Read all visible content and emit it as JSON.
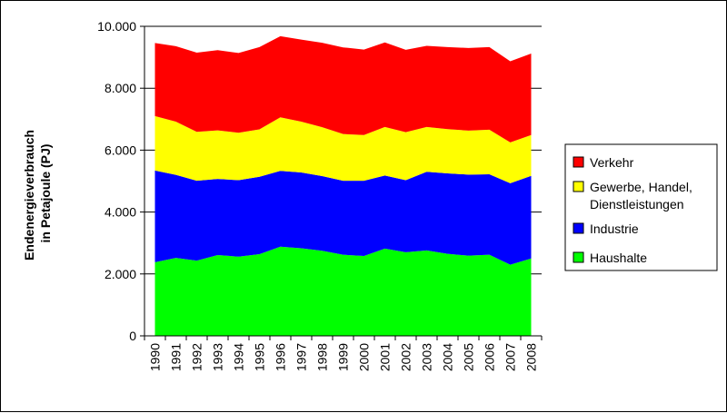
{
  "chart_data": {
    "type": "area",
    "stacked": true,
    "title": "",
    "xlabel": "",
    "ylabel": [
      "Endenergieverbrauch",
      "in Petajoule (PJ)"
    ],
    "ylim": [
      0,
      10000
    ],
    "yticks": [
      0,
      2000,
      4000,
      6000,
      8000,
      10000
    ],
    "ytick_labels": [
      "0",
      "2.000",
      "4.000",
      "6.000",
      "8.000",
      "10.000"
    ],
    "grid": "horizontal",
    "legend_position": "right",
    "categories": [
      "1990",
      "1991",
      "1992",
      "1993",
      "1994",
      "1995",
      "1996",
      "1997",
      "1998",
      "1999",
      "2000",
      "2001",
      "2002",
      "2003",
      "2004",
      "2005",
      "2006",
      "2007",
      "2008"
    ],
    "series": [
      {
        "name": "Haushalte",
        "color": "#00ff00",
        "values": [
          2380,
          2520,
          2430,
          2610,
          2560,
          2640,
          2880,
          2830,
          2750,
          2620,
          2580,
          2820,
          2700,
          2760,
          2650,
          2590,
          2620,
          2300,
          2500
        ]
      },
      {
        "name": "Industrie",
        "color": "#0000ff",
        "values": [
          2960,
          2680,
          2580,
          2460,
          2470,
          2500,
          2450,
          2450,
          2410,
          2390,
          2430,
          2360,
          2330,
          2540,
          2600,
          2620,
          2600,
          2630,
          2670
        ]
      },
      {
        "name": "Gewerbe, Handel, Dienstleistungen",
        "color": "#ffff00",
        "values": [
          1760,
          1720,
          1580,
          1570,
          1530,
          1530,
          1730,
          1640,
          1580,
          1510,
          1480,
          1570,
          1550,
          1450,
          1430,
          1420,
          1440,
          1320,
          1320
        ]
      },
      {
        "name": "Verkehr",
        "color": "#ff0000",
        "values": [
          2360,
          2440,
          2560,
          2590,
          2580,
          2660,
          2620,
          2650,
          2730,
          2800,
          2760,
          2730,
          2660,
          2620,
          2650,
          2670,
          2670,
          2620,
          2630
        ]
      }
    ]
  },
  "legend": {
    "items": [
      {
        "lines": [
          "Verkehr"
        ],
        "color": "#ff0000"
      },
      {
        "lines": [
          "Gewerbe, Handel,",
          "Dienstleistungen"
        ],
        "color": "#ffff00"
      },
      {
        "lines": [
          "Industrie"
        ],
        "color": "#0000ff"
      },
      {
        "lines": [
          "Haushalte"
        ],
        "color": "#00ff00"
      }
    ]
  }
}
